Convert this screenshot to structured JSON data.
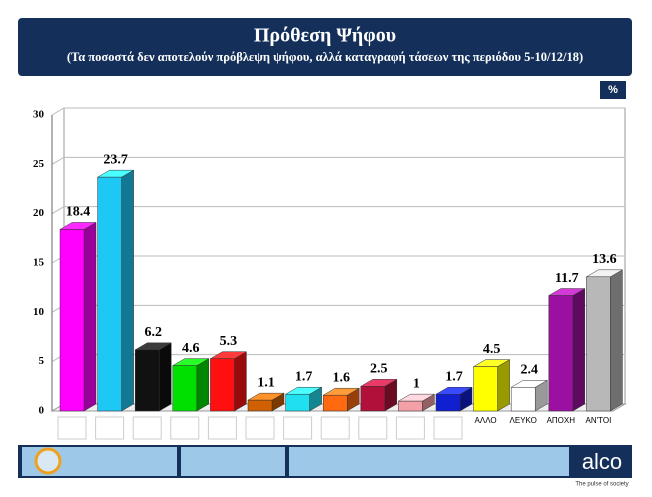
{
  "chart_data": {
    "type": "bar3d",
    "title": "Πρόθεση Ψήφου",
    "subtitle": "(Τα ποσοστά δεν αποτελούν πρόβλεψη ψήφου, αλλά καταγραφή τάσεων της περιόδου 5-10/12/18)",
    "unit_label": "%",
    "categories": [
      null,
      null,
      null,
      null,
      null,
      null,
      null,
      null,
      null,
      null,
      null,
      "ΑΛΛΟ",
      "ΛΕΥΚΟ",
      "ΑΠΟΧΗ",
      "ΑΝ'ΤΟΙ"
    ],
    "values": [
      18.4,
      23.7,
      6.2,
      4.6,
      5.3,
      1.1,
      1.7,
      1.6,
      2.5,
      1,
      1.7,
      4.5,
      2.4,
      11.7,
      13.6
    ],
    "colors": [
      "#ff00ff",
      "#1ec8f5",
      "#111111",
      "#00e000",
      "#ff1010",
      "#d06000",
      "#20e0f0",
      "#ff6a10",
      "#b0103a",
      "#f4a0a8",
      "#1020d0",
      "#ffff00",
      "#ffffff",
      "#9b10a0",
      "#b8b8b8"
    ],
    "ylim": [
      0,
      30
    ],
    "yticks": [
      0,
      5,
      10,
      15,
      20,
      25,
      30
    ],
    "grid": true
  },
  "footer": {
    "brand": "alco",
    "tagline": "The pulse of society"
  }
}
